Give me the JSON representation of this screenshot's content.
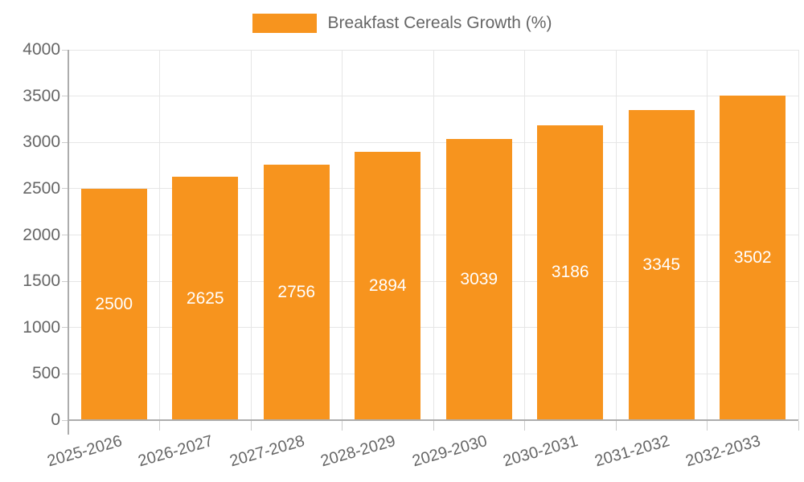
{
  "chart_data": {
    "type": "bar",
    "title": "",
    "legend_label": "Breakfast Cereals Growth (%)",
    "legend_position": "top",
    "categories": [
      "2025-2026",
      "2026-2027",
      "2027-2028",
      "2028-2029",
      "2029-2030",
      "2030-2031",
      "2031-2032",
      "2032-2033"
    ],
    "values": [
      2500,
      2625,
      2756,
      2894,
      3039,
      3186,
      3345,
      3502
    ],
    "bar_value_labels": [
      "2500",
      "2625",
      "2756",
      "2894",
      "3039",
      "3186",
      "3345",
      "3502"
    ],
    "xlabel": "",
    "ylabel": "",
    "ylim": [
      0,
      4000
    ],
    "ytick_step": 500,
    "ytick_labels": [
      "0",
      "500",
      "1000",
      "1500",
      "2000",
      "2500",
      "3000",
      "3500",
      "4000"
    ],
    "grid": true,
    "x_label_rotation_deg": -16,
    "colors": {
      "bar_fill": "#F7941E",
      "bar_value_text": "#ffffff",
      "axis_text": "#666666",
      "legend_text": "#666666",
      "gridline": "#e6e6e6",
      "axis_line": "#adadad",
      "tick_mark": "#cccccc"
    }
  }
}
